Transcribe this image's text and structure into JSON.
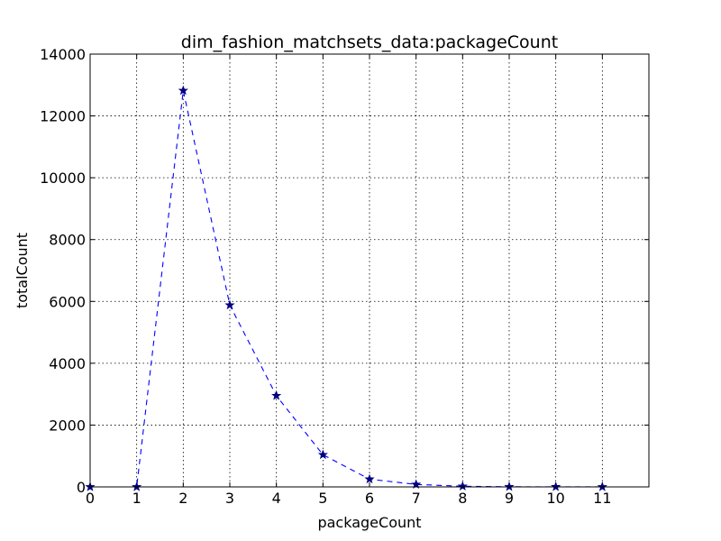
{
  "chart_data": {
    "type": "line",
    "title": "dim_fashion_matchsets_data:packageCount",
    "xlabel": "packageCount",
    "ylabel": "totalCount",
    "xlim": [
      0,
      12
    ],
    "ylim": [
      0,
      14000
    ],
    "x_ticks": [
      "0",
      "1",
      "2",
      "3",
      "4",
      "5",
      "6",
      "7",
      "8",
      "9",
      "10",
      "11"
    ],
    "y_ticks": [
      "0",
      "2000",
      "4000",
      "6000",
      "8000",
      "10000",
      "12000",
      "14000"
    ],
    "grid": true,
    "series": [
      {
        "x": [
          0,
          1,
          2,
          3,
          4,
          5,
          6,
          7,
          8,
          9,
          10,
          11
        ],
        "y": [
          0,
          0,
          12820,
          5880,
          2950,
          1040,
          250,
          80,
          20,
          5,
          2,
          1
        ],
        "color": "#0000ff",
        "marker_color": "#000080",
        "line_style": "dashed",
        "marker": "star"
      }
    ]
  }
}
